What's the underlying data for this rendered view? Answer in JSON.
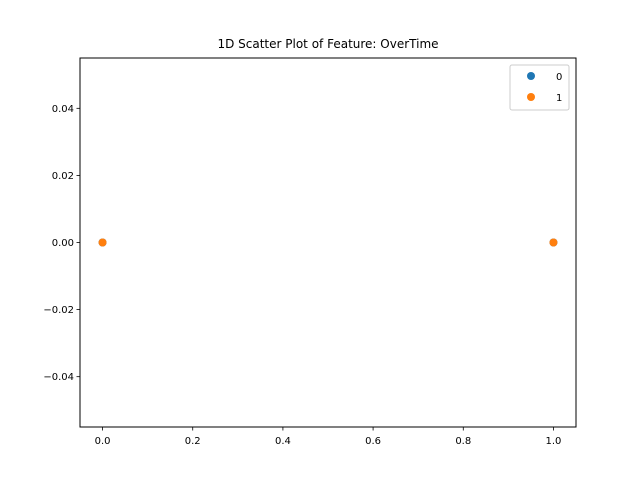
{
  "chart_data": {
    "type": "scatter",
    "title": "1D Scatter Plot of Feature: OverTime",
    "xlabel": "",
    "ylabel": "",
    "xlim": [
      -0.05,
      1.05
    ],
    "ylim": [
      -0.055,
      0.055
    ],
    "x_ticks": [
      0.0,
      0.2,
      0.4,
      0.6,
      0.8,
      1.0
    ],
    "x_tick_labels": [
      "0.0",
      "0.2",
      "0.4",
      "0.6",
      "0.8",
      "1.0"
    ],
    "y_ticks": [
      0.04,
      0.02,
      0.0,
      -0.02,
      -0.04
    ],
    "y_tick_labels": [
      "0.04",
      "0.02",
      "0.00",
      "−0.02",
      "−0.04"
    ],
    "grid": false,
    "legend_position": "top-right",
    "series": [
      {
        "name": "0",
        "color": "#1f77b4",
        "points": [
          {
            "x": 0,
            "y": 0
          },
          {
            "x": 1,
            "y": 0
          }
        ]
      },
      {
        "name": "1",
        "color": "#ff7f0e",
        "points": [
          {
            "x": 0,
            "y": 0
          },
          {
            "x": 1,
            "y": 0
          }
        ]
      }
    ]
  }
}
